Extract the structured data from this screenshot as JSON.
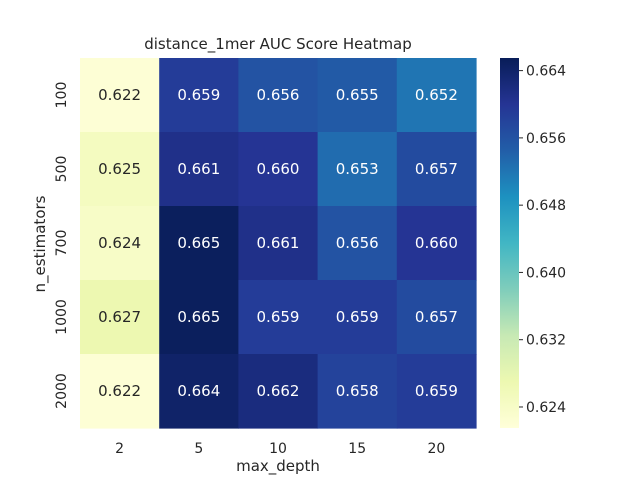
{
  "chart_data": {
    "type": "heatmap",
    "title": "distance_1mer AUC Score Heatmap",
    "xlabel": "max_depth",
    "ylabel": "n_estimators",
    "x_categories": [
      "2",
      "5",
      "10",
      "15",
      "20"
    ],
    "y_categories": [
      "100",
      "500",
      "700",
      "1000",
      "2000"
    ],
    "values": [
      [
        0.622,
        0.659,
        0.656,
        0.655,
        0.652
      ],
      [
        0.625,
        0.661,
        0.66,
        0.653,
        0.657
      ],
      [
        0.624,
        0.665,
        0.661,
        0.656,
        0.66
      ],
      [
        0.627,
        0.665,
        0.659,
        0.659,
        0.657
      ],
      [
        0.622,
        0.664,
        0.662,
        0.658,
        0.659
      ]
    ],
    "value_labels": [
      [
        "0.622",
        "0.659",
        "0.656",
        "0.655",
        "0.652"
      ],
      [
        "0.625",
        "0.661",
        "0.660",
        "0.653",
        "0.657"
      ],
      [
        "0.624",
        "0.665",
        "0.661",
        "0.656",
        "0.660"
      ],
      [
        "0.627",
        "0.665",
        "0.659",
        "0.659",
        "0.657"
      ],
      [
        "0.622",
        "0.664",
        "0.662",
        "0.658",
        "0.659"
      ]
    ],
    "colormap": "YlGnBu",
    "color_range": [
      0.6215,
      0.6655
    ],
    "colorbar": {
      "ticks": [
        0.624,
        0.632,
        0.64,
        0.648,
        0.656,
        0.664
      ],
      "tick_labels": [
        "0.624",
        "0.632",
        "0.640",
        "0.648",
        "0.656",
        "0.664"
      ]
    },
    "grid": false
  }
}
